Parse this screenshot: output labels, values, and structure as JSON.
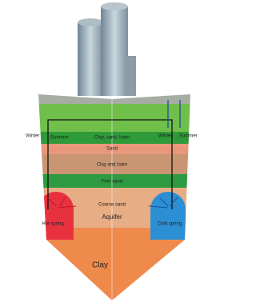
{
  "labels": {
    "winter_left": "Winter",
    "summer_left": "Summer",
    "winter_right": "Winter",
    "summer_right": "Summer",
    "layer_1": "Clay, sand, loam",
    "layer_2": "Sand",
    "layer_3": "Clay and loam",
    "layer_4": "Fine sand",
    "layer_5": "Coarse sand",
    "aquifer": "Aquifer",
    "hot_spring": "Hot spring",
    "cold_spring": "Cold spring",
    "layer_6": "Clay"
  }
}
